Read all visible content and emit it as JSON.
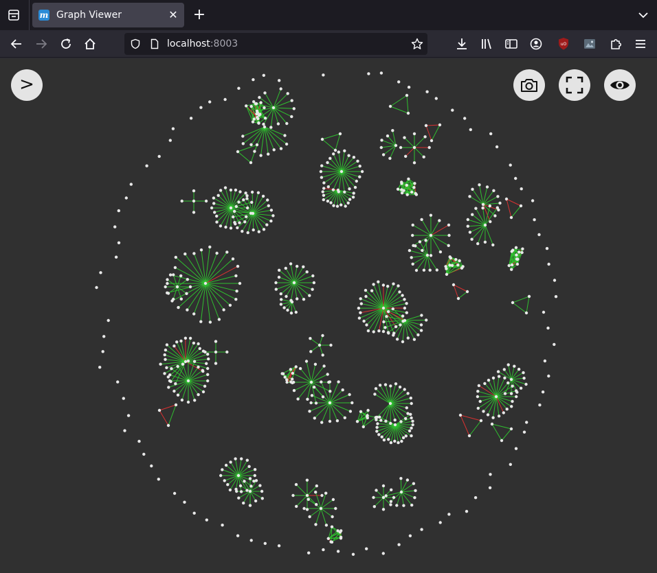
{
  "browser": {
    "tab": {
      "title": "Graph Viewer",
      "favicon_letter": "m"
    },
    "url": {
      "host": "localhost",
      "port": ":8003"
    }
  },
  "toolbar": {
    "toggle_panel_label": ">",
    "icons": [
      "camera-icon",
      "fullscreen-icon",
      "eye-icon"
    ]
  },
  "colors": {
    "background": "#303030",
    "node": "#e8e8e8",
    "edge_green": "#2fbf2f",
    "edge_red": "#d93030"
  }
}
